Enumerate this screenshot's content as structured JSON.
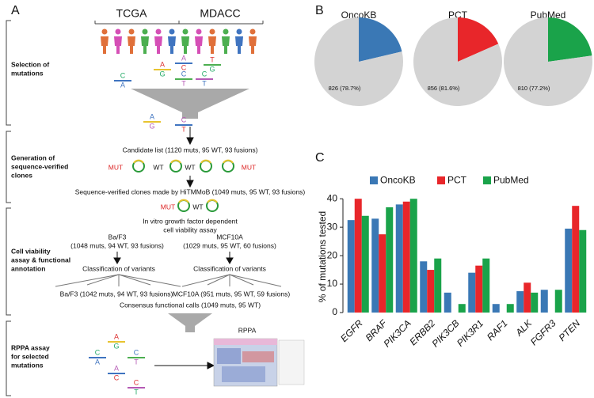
{
  "panel_a": {
    "letter": "A",
    "cohorts": [
      "TCGA",
      "MDACC"
    ],
    "sections": [
      [
        "Selection of",
        "mutations"
      ],
      [
        "Generation of",
        "sequence-verified",
        "clones"
      ],
      [
        "Cell viability",
        "assay & functional",
        "annotation"
      ],
      [
        "RPPA assay",
        "for selected",
        "mutations"
      ]
    ],
    "base_pairs": [
      [
        "A",
        "G"
      ],
      [
        "C",
        "A"
      ],
      [
        "C",
        "T"
      ],
      [
        "A",
        "C"
      ],
      [
        "T",
        "G"
      ],
      [
        "C",
        "T"
      ],
      [
        "A",
        "G"
      ],
      [
        "C",
        "T"
      ],
      [
        "A",
        "G"
      ],
      [
        "C",
        "A"
      ],
      [
        "C",
        "T"
      ],
      [
        "A",
        "C"
      ],
      [
        "C",
        "T"
      ]
    ],
    "candidate_list": "Candidate list (1120 muts, 95 WT, 93 fusions)",
    "clone_labels": [
      "MUT",
      "WT",
      "WT",
      "MUT"
    ],
    "verified": "Sequence-verified clones made by HiTMMoB (1049 muts, 95 WT, 93 fusions)",
    "assay_labels": [
      "MUT",
      "WT"
    ],
    "assay": [
      "In vitro growth factor dependent",
      "cell viability assay"
    ],
    "lines": [
      [
        "Ba/F3",
        "(1048 muts, 94 WT, 93 fusions)"
      ],
      [
        "MCF10A",
        "(1029 muts, 95 WT, 60 fusions)"
      ]
    ],
    "classification": [
      "Classification of variants",
      "Classification of variants"
    ],
    "results": [
      "Ba/F3 (1042 muts, 94 WT, 93 fusions)",
      "MCF10A (951 muts, 95 WT, 59 fusions)"
    ],
    "consensus": "Consensus functional calls (1049 muts, 95 WT)",
    "rppa": "RPPA"
  },
  "panel_b": {
    "letter": "B"
  },
  "panel_c": {
    "letter": "C"
  },
  "chart_data": [
    {
      "type": "pie",
      "title": "OncoKB",
      "values": [
        78.7,
        21.3
      ],
      "value_labels": [
        "826 (78.7%)",
        null
      ],
      "colors": [
        "#d3d3d3",
        "#3a78b5"
      ]
    },
    {
      "type": "pie",
      "title": "PCT",
      "values": [
        81.6,
        18.4
      ],
      "value_labels": [
        "856 (81.6%)",
        null
      ],
      "colors": [
        "#d3d3d3",
        "#e8262a"
      ]
    },
    {
      "type": "pie",
      "title": "PubMed",
      "values": [
        77.2,
        22.8
      ],
      "value_labels": [
        "810 (77.2%)",
        null
      ],
      "colors": [
        "#d3d3d3",
        "#1aa34a"
      ]
    },
    {
      "type": "bar",
      "ylabel": "% of mutations tested",
      "categories": [
        "EGFR",
        "BRAF",
        "PIK3CA",
        "ERBB2",
        "PIK3CB",
        "PIK3R1",
        "RAF1",
        "ALK",
        "FGFR3",
        "PTEN"
      ],
      "series": [
        {
          "name": "OncoKB",
          "color": "#3a78b5",
          "values": [
            32.5,
            33,
            38,
            18,
            7,
            14,
            3,
            7.5,
            8,
            29.5
          ]
        },
        {
          "name": "PCT",
          "color": "#e8262a",
          "values": [
            40,
            27.5,
            39,
            15,
            0,
            16.5,
            0,
            10.5,
            0,
            37.5
          ]
        },
        {
          "name": "PubMed",
          "color": "#1aa34a",
          "values": [
            34,
            37,
            40,
            19,
            3,
            19,
            3,
            7,
            8,
            29
          ]
        }
      ],
      "ylim": [
        0,
        42
      ],
      "yticks": [
        0,
        10,
        20,
        30,
        40
      ],
      "legend": "top"
    }
  ]
}
